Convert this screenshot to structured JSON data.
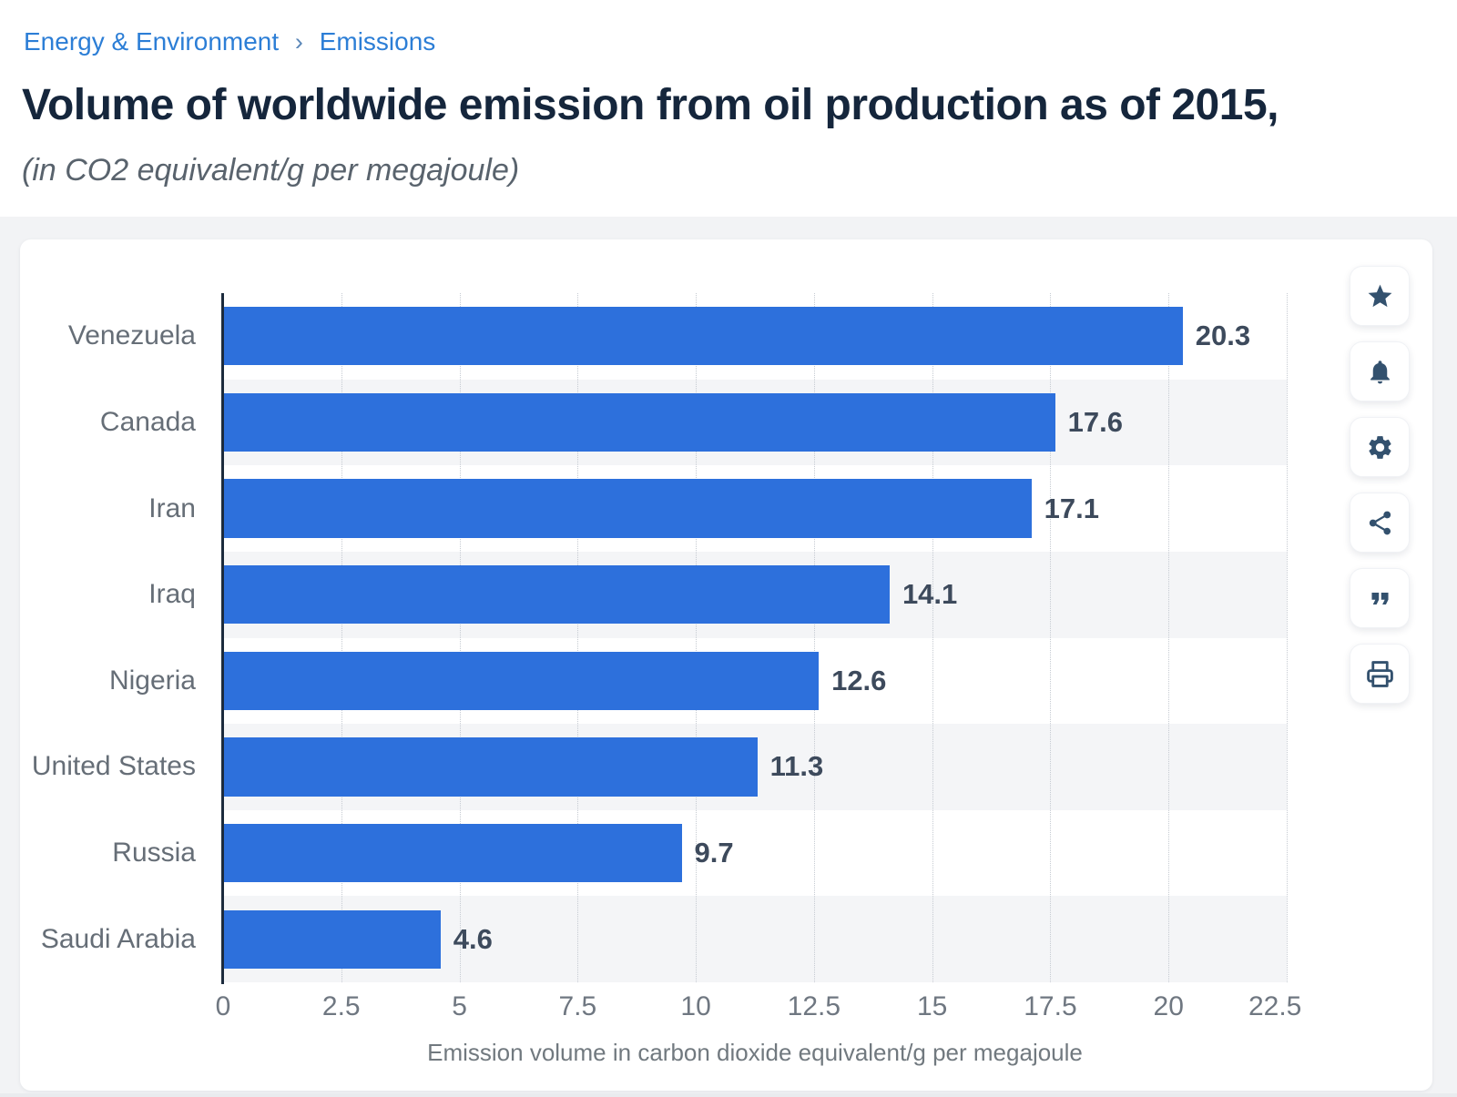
{
  "breadcrumb": {
    "items": [
      {
        "label": "Energy & Environment"
      },
      {
        "label": "Emissions"
      }
    ],
    "separator": "›"
  },
  "header": {
    "title": "Volume of worldwide emission from oil production as of 2015,",
    "subtitle": "(in CO2 equivalent/g per megajoule)"
  },
  "chart_data": {
    "type": "bar",
    "orientation": "horizontal",
    "title": "Volume of worldwide emission from oil production as of 2015,",
    "categories": [
      "Venezuela",
      "Canada",
      "Iran",
      "Iraq",
      "Nigeria",
      "United States",
      "Russia",
      "Saudi Arabia"
    ],
    "values": [
      20.3,
      17.6,
      17.1,
      14.1,
      12.6,
      11.3,
      9.7,
      4.6
    ],
    "value_labels": [
      "20.3",
      "17.6",
      "17.1",
      "14.1",
      "12.6",
      "11.3",
      "9.7",
      "4.6"
    ],
    "xlabel": "Emission volume in carbon dioxide equivalent/g per megajoule",
    "ylabel": "",
    "xticks": [
      "0",
      "2.5",
      "5",
      "7.5",
      "10",
      "12.5",
      "15",
      "17.5",
      "20",
      "22.5"
    ],
    "xtick_values": [
      0,
      2.5,
      5,
      7.5,
      10,
      12.5,
      15,
      17.5,
      20,
      22.5
    ],
    "xlim": [
      0,
      22.5
    ],
    "grid": "vertical-dotted",
    "legend": "none",
    "bar_color": "#2d70dc",
    "row_stripe_color": "#f4f5f7"
  },
  "toolbar": {
    "icons": [
      "favorite-star",
      "notification-bell",
      "settings-gear",
      "share",
      "citation-quote",
      "print"
    ]
  }
}
